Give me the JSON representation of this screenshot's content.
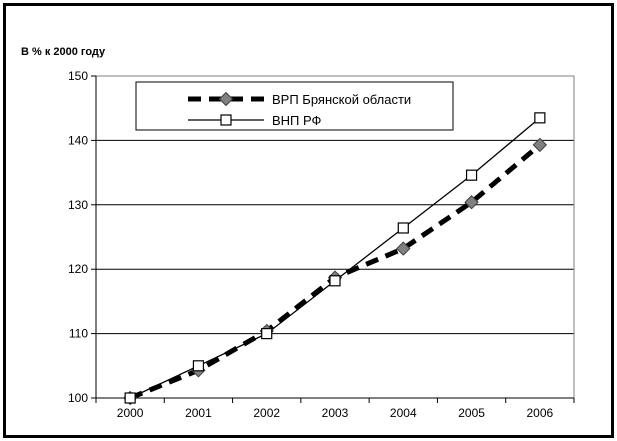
{
  "chart_data": {
    "type": "line",
    "title": "",
    "ylabel": "В % к 2000 году",
    "xlabel": "",
    "categories": [
      "2000",
      "2001",
      "2002",
      "2003",
      "2004",
      "2005",
      "2006"
    ],
    "ylim": [
      100,
      150
    ],
    "yticks": [
      100,
      110,
      120,
      130,
      140,
      150
    ],
    "grid": true,
    "legend_position": "top",
    "series": [
      {
        "name": "ВРП Брянской области",
        "values": [
          100.0,
          104.3,
          110.4,
          118.7,
          123.2,
          130.4,
          139.3
        ],
        "style": "dashed",
        "marker": "diamond",
        "color": "#000000",
        "marker_color": "#808080"
      },
      {
        "name": "ВНП РФ",
        "values": [
          100.0,
          105.0,
          110.0,
          118.2,
          126.4,
          134.6,
          143.5
        ],
        "style": "solid",
        "marker": "square",
        "color": "#000000",
        "marker_color": "#ffffff"
      }
    ]
  }
}
